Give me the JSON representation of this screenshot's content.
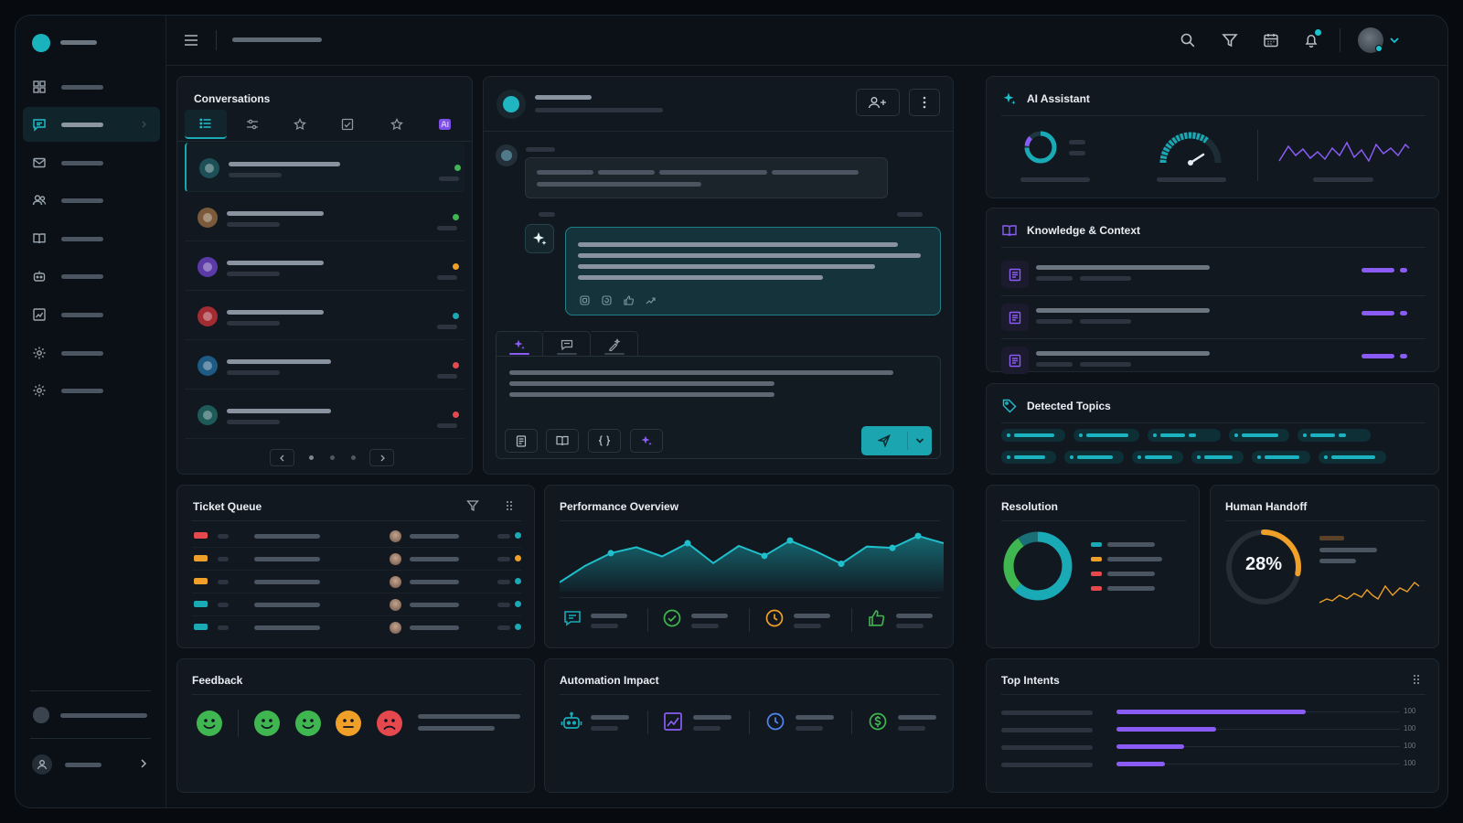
{
  "colors": {
    "accent": "#19aab5",
    "purple": "#8a5cf5",
    "green": "#3fb650",
    "orange": "#f0a028",
    "red": "#e5484d",
    "background": "#0b1117",
    "panel": "#111820"
  },
  "sidebar": {
    "logo": "teal-circle-logo",
    "items": [
      {
        "icon": "grid-icon",
        "active": false
      },
      {
        "icon": "chat-icon",
        "active": true
      },
      {
        "icon": "mail-icon",
        "active": false
      },
      {
        "icon": "users-icon",
        "active": false
      },
      {
        "icon": "book-icon",
        "active": false
      },
      {
        "icon": "robot-icon",
        "active": false
      },
      {
        "icon": "chart-icon",
        "active": false
      },
      {
        "icon": "gear-icon",
        "active": false
      },
      {
        "icon": "gear-icon",
        "active": false
      }
    ]
  },
  "topbar": {
    "icons": [
      "menu-icon",
      "search-icon",
      "filter-icon",
      "calendar-icon",
      "bell-icon",
      "avatar",
      "chevron-down-icon"
    ]
  },
  "conversations": {
    "title": "Conversations",
    "tabs": [
      "list-icon",
      "sliders-icon",
      "star-icon",
      "chart-check-icon",
      "star-icon",
      "ai-icon"
    ],
    "items": [
      {
        "avatar_color": "#1d4f56",
        "status": "#3fb650"
      },
      {
        "avatar_color": "#7a5a3a",
        "status": "#3fb650"
      },
      {
        "avatar_color": "#5b3aa8",
        "status": "#f0a028"
      },
      {
        "avatar_color": "#a32c33",
        "status": "#19aab5"
      },
      {
        "avatar_color": "#1f5a84",
        "status": "#e5484d"
      },
      {
        "avatar_color": "#1d5a58",
        "status": "#e5484d"
      }
    ],
    "pagination": [
      "chevron-left-icon",
      "page-dot",
      "page-dot",
      "page-dot",
      "chevron-right-icon"
    ]
  },
  "chat": {
    "header_icons": [
      "add-user-icon",
      "more-vertical-icon"
    ],
    "message_actions": [
      "copy-icon",
      "retry-icon",
      "thumbs-up-icon",
      "share-icon"
    ],
    "composer_tabs": [
      "sparkle-icon",
      "chat-icon",
      "magic-pen-icon"
    ],
    "composer_tools": [
      "document-icon",
      "book-icon",
      "code-icon",
      "sparkle-icon"
    ],
    "send_icon": "send-icon"
  },
  "ai_assistant": {
    "title": "AI Assistant"
  },
  "knowledge": {
    "title": "Knowledge & Context",
    "rows": 3
  },
  "topics": {
    "title": "Detected Topics",
    "row1": [
      4,
      4,
      5,
      4,
      5
    ],
    "row2": [
      3,
      4,
      3,
      3,
      4,
      4
    ]
  },
  "ticket_queue": {
    "title": "Ticket Queue",
    "rows": [
      {
        "tag": "#e5484d",
        "status": "#19aab5"
      },
      {
        "tag": "#f0a028",
        "status": "#f0a028"
      },
      {
        "tag": "#f0a028",
        "status": "#19aab5"
      },
      {
        "tag": "#19aab5",
        "status": "#19aab5"
      },
      {
        "tag": "#19aab5",
        "status": "#19aab5"
      }
    ]
  },
  "performance": {
    "title": "Performance Overview",
    "series": [
      3,
      28,
      47,
      56,
      42,
      62,
      32,
      58,
      43,
      66,
      50,
      31,
      57,
      55,
      73,
      62
    ],
    "kpi_icons": [
      "chat-icon",
      "check-circle-icon",
      "clock-icon",
      "thumbs-up-icon"
    ]
  },
  "resolution": {
    "title": "Resolution",
    "legend_colors": [
      "#19aab5",
      "#f0a028",
      "#e5484d",
      "#e5484d"
    ],
    "segments": [
      62,
      28,
      10
    ]
  },
  "handoff": {
    "title": "Human Handoff",
    "value": "28%",
    "fraction": 0.28
  },
  "feedback": {
    "title": "Feedback",
    "faces": [
      {
        "color": "#3fb650",
        "mood": "happy"
      },
      {
        "color": "#3fb650",
        "mood": "happy"
      },
      {
        "color": "#3fb650",
        "mood": "happy"
      },
      {
        "color": "#f0a028",
        "mood": "neutral"
      },
      {
        "color": "#e5484d",
        "mood": "sad"
      }
    ]
  },
  "automation": {
    "title": "Automation Impact",
    "icons": [
      "robot-icon",
      "chart-icon",
      "clock-icon",
      "dollar-icon"
    ]
  },
  "top_intents": {
    "title": "Top Intents",
    "bars": [
      0.78,
      0.41,
      0.28,
      0.2
    ],
    "end_labels": [
      "100",
      "100",
      "100",
      "100"
    ]
  }
}
